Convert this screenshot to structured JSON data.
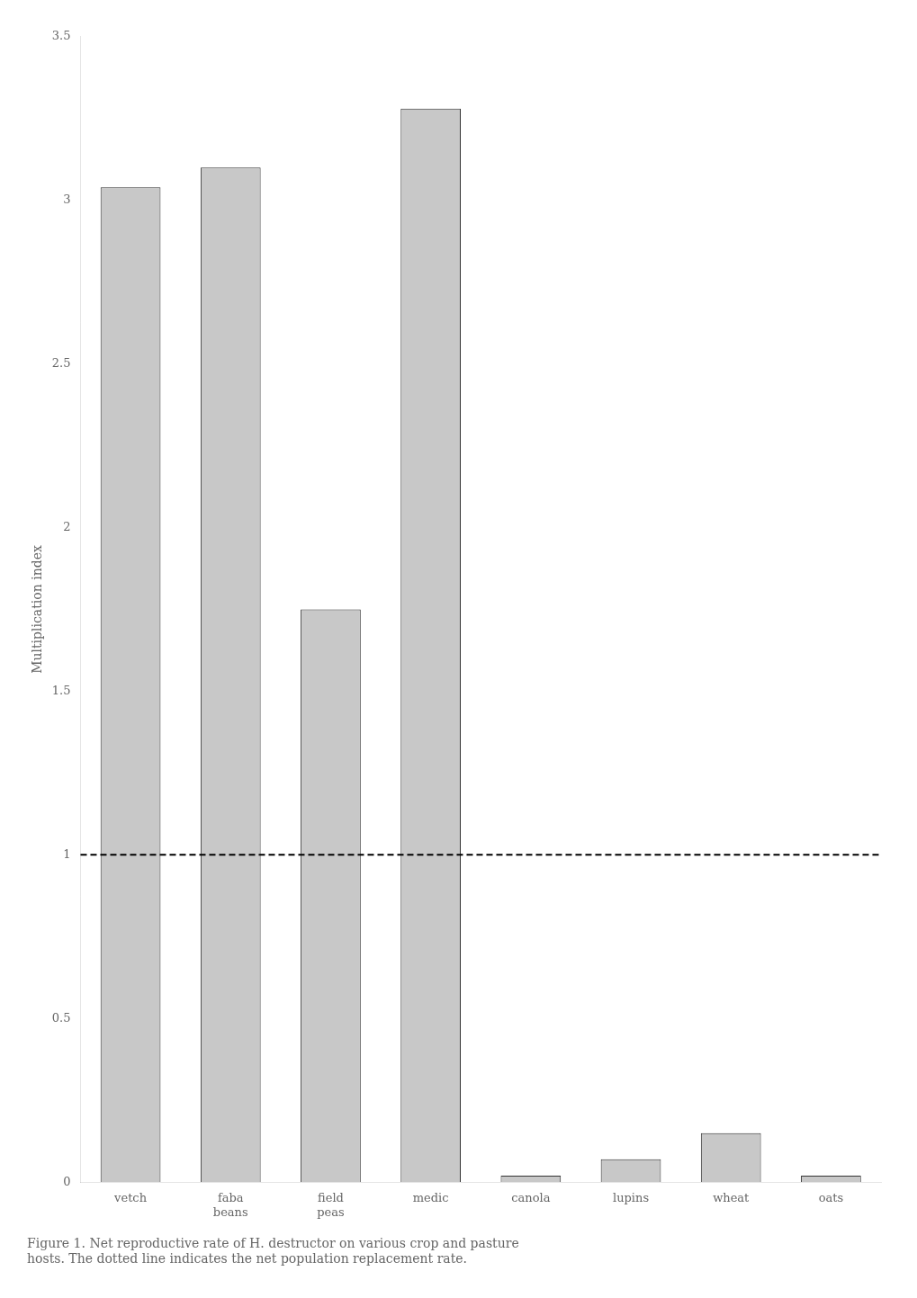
{
  "chart_data": {
    "type": "bar",
    "title": "Figure 1. Net reproductive rate of H. destructor on various crop and pasture\nhosts. The dotted line indicates the net population replacement rate.",
    "ylabel": "Multiplication index",
    "categories": [
      "vetch",
      "faba\nbeans",
      "field\npeas",
      "medic",
      "canola",
      "lupins",
      "wheat",
      "oats"
    ],
    "values": [
      3.04,
      3.1,
      1.75,
      3.28,
      0.02,
      0.07,
      0.15,
      0.02
    ],
    "color": "#c8c8c8",
    "ylim": [
      0,
      3.5
    ],
    "yticks": [
      0,
      0.5,
      1,
      1.5,
      2,
      2.5,
      3,
      3.5
    ],
    "grid": false,
    "annotations": [
      {
        "type": "hline",
        "y": 1.0,
        "color": "#000000",
        "line_style": "dashed"
      }
    ]
  }
}
